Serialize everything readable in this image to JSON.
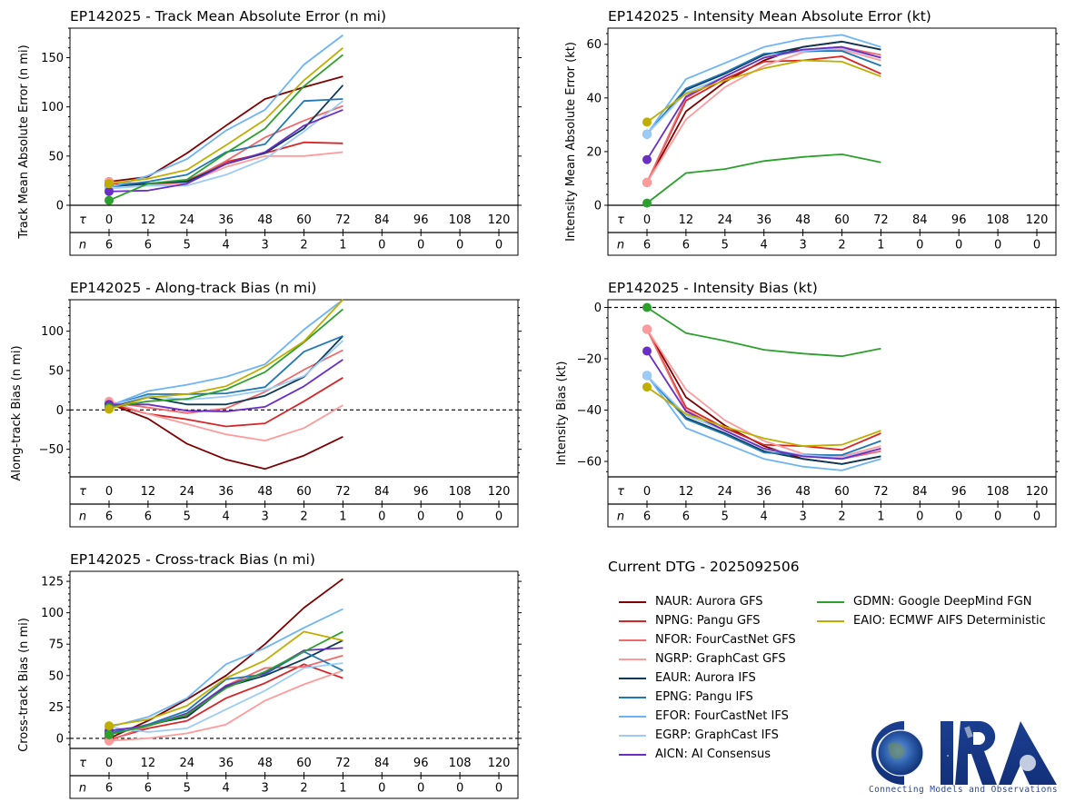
{
  "legend": {
    "title": "Current DTG - 2025092506",
    "items": [
      {
        "code": "NAUR",
        "label": "NAUR: Aurora GFS",
        "color": "#7f0000"
      },
      {
        "code": "NPNG",
        "label": "NPNG: Pangu GFS",
        "color": "#d62728"
      },
      {
        "code": "NFOR",
        "label": "NFOR: FourCastNet GFS",
        "color": "#f06a6a"
      },
      {
        "code": "NGRP",
        "label": "NGRP: GraphCast GFS",
        "color": "#ff9b9b"
      },
      {
        "code": "EAUR",
        "label": "EAUR: Aurora IFS",
        "color": "#0b3a57"
      },
      {
        "code": "EPNG",
        "label": "EPNG: Pangu IFS",
        "color": "#1f77b4"
      },
      {
        "code": "EFOR",
        "label": "EFOR: FourCastNet IFS",
        "color": "#6cb4f5"
      },
      {
        "code": "EGRP",
        "label": "EGRP: GraphCast IFS",
        "color": "#9ccbf9"
      },
      {
        "code": "AICN",
        "label": "AICN: AI Consensus",
        "color": "#6a2ec4"
      },
      {
        "code": "GDMN",
        "label": "GDMN: Google DeepMind FGN",
        "color": "#2ca02c"
      },
      {
        "code": "EAIO",
        "label": "EAIO: ECMWF AIFS Deterministic",
        "color": "#bfae00"
      }
    ]
  },
  "logo": {
    "text": "CIRA",
    "tagline": "Connecting Models and Observations"
  },
  "chart_data": [
    {
      "id": "track-mae",
      "type": "line",
      "title": "EP142025 - Track Mean Absolute Error (n mi)",
      "ylabel": "Track Mean Absolute Error (n mi)",
      "ylim": [
        0,
        180
      ],
      "yticks": [
        0,
        50,
        100,
        150
      ],
      "zero_line": "solid",
      "tau_label": "τ",
      "n_label": "n",
      "x": [
        0,
        12,
        24,
        36,
        48,
        60,
        72,
        84,
        96,
        108,
        120
      ],
      "n": [
        6,
        6,
        5,
        4,
        3,
        2,
        1,
        0,
        0,
        0,
        0
      ],
      "series": [
        {
          "code": "NAUR",
          "values": [
            24,
            29,
            53,
            81,
            108,
            120,
            131
          ]
        },
        {
          "code": "NPNG",
          "values": [
            22,
            22,
            25,
            44,
            53,
            64,
            63
          ]
        },
        {
          "code": "NFOR",
          "values": [
            23,
            22,
            24,
            45,
            69,
            86,
            101
          ]
        },
        {
          "code": "NGRP",
          "values": [
            24,
            20,
            23,
            39,
            50,
            50,
            54
          ]
        },
        {
          "code": "EAUR",
          "values": [
            19,
            22,
            24,
            42,
            53,
            78,
            122
          ]
        },
        {
          "code": "EPNG",
          "values": [
            19,
            24,
            31,
            54,
            62,
            106,
            108
          ]
        },
        {
          "code": "EFOR",
          "values": [
            18,
            30,
            47,
            76,
            97,
            143,
            173
          ]
        },
        {
          "code": "EGRP",
          "values": [
            17,
            20,
            20,
            31,
            47,
            75,
            106
          ]
        },
        {
          "code": "AICN",
          "values": [
            14,
            15,
            22,
            42,
            54,
            81,
            97
          ]
        },
        {
          "code": "GDMN",
          "values": [
            5,
            22,
            26,
            53,
            78,
            121,
            153
          ]
        },
        {
          "code": "EAIO",
          "values": [
            22,
            27,
            36,
            61,
            87,
            127,
            160
          ]
        }
      ]
    },
    {
      "id": "intensity-mae",
      "type": "line",
      "title": "EP142025 - Intensity Mean Absolute Error (kt)",
      "ylabel": "Intensity Mean Absolute Error (kt)",
      "ylim": [
        0,
        66
      ],
      "yticks": [
        0,
        20,
        40,
        60
      ],
      "zero_line": "solid",
      "tau_label": "τ",
      "n_label": "n",
      "x": [
        0,
        12,
        24,
        36,
        48,
        60,
        72,
        84,
        96,
        108,
        120
      ],
      "n": [
        6,
        6,
        5,
        4,
        3,
        2,
        1,
        0,
        0,
        0,
        0
      ],
      "series": [
        {
          "code": "NAUR",
          "values": [
            8.5,
            35,
            46,
            54,
            59,
            61,
            58
          ]
        },
        {
          "code": "NPNG",
          "values": [
            8.5,
            39,
            47,
            53.5,
            54,
            55.5,
            49
          ]
        },
        {
          "code": "NFOR",
          "values": [
            8.5,
            40,
            48,
            55,
            58,
            59,
            56
          ]
        },
        {
          "code": "NGRP",
          "values": [
            8.5,
            32,
            44,
            52,
            57,
            58,
            54
          ]
        },
        {
          "code": "EAUR",
          "values": [
            26.5,
            43,
            49,
            56,
            59,
            61,
            58
          ]
        },
        {
          "code": "EPNG",
          "values": [
            26.5,
            43.5,
            49.5,
            56.5,
            57.5,
            57.5,
            52
          ]
        },
        {
          "code": "EFOR",
          "values": [
            26.5,
            47,
            53,
            59,
            62,
            63.5,
            59
          ]
        },
        {
          "code": "EGRP",
          "values": [
            26.5,
            42,
            48,
            55,
            57.5,
            58.5,
            55
          ]
        },
        {
          "code": "AICN",
          "values": [
            17,
            40.5,
            48,
            55,
            58,
            59,
            55
          ]
        },
        {
          "code": "GDMN",
          "values": [
            0.8,
            12,
            13.5,
            16.5,
            18,
            19,
            16
          ]
        },
        {
          "code": "EAIO",
          "values": [
            31,
            41.5,
            46.5,
            51,
            54,
            53.5,
            48
          ]
        }
      ]
    },
    {
      "id": "along-track-bias",
      "type": "line",
      "title": "EP142025 - Along-track Bias (n mi)",
      "ylabel": "Along-track Bias (n mi)",
      "ylim": [
        -85,
        140
      ],
      "yticks": [
        -50,
        0,
        50,
        100
      ],
      "zero_line": "dashed",
      "tau_label": "τ",
      "n_label": "n",
      "x": [
        0,
        12,
        24,
        36,
        48,
        60,
        72,
        84,
        96,
        108,
        120
      ],
      "n": [
        6,
        6,
        5,
        4,
        3,
        2,
        1,
        0,
        0,
        0,
        0
      ],
      "series": [
        {
          "code": "NAUR",
          "values": [
            8,
            -11,
            -43,
            -63,
            -75,
            -58,
            -34
          ]
        },
        {
          "code": "NPNG",
          "values": [
            8,
            -5,
            -12,
            -21,
            -17,
            11,
            41
          ]
        },
        {
          "code": "NFOR",
          "values": [
            10,
            3,
            -4,
            2,
            23,
            51,
            76
          ]
        },
        {
          "code": "NGRP",
          "values": [
            11,
            -5,
            -18,
            -31,
            -39,
            -23,
            6
          ]
        },
        {
          "code": "EAUR",
          "values": [
            5,
            16,
            7,
            7,
            18,
            42,
            94
          ]
        },
        {
          "code": "EPNG",
          "values": [
            5,
            20,
            20,
            21,
            29,
            74,
            94
          ]
        },
        {
          "code": "EFOR",
          "values": [
            5,
            24,
            32,
            42,
            58,
            102,
            140
          ]
        },
        {
          "code": "EGRP",
          "values": [
            5,
            18,
            13,
            17,
            25,
            43,
            88
          ]
        },
        {
          "code": "AICN",
          "values": [
            7,
            7,
            -1,
            -2,
            4,
            30,
            64
          ]
        },
        {
          "code": "GDMN",
          "values": [
            3,
            11,
            14,
            26,
            48,
            86,
            128
          ]
        },
        {
          "code": "EAIO",
          "values": [
            1,
            16,
            20,
            30,
            55,
            87,
            140
          ]
        }
      ]
    },
    {
      "id": "intensity-bias",
      "type": "line",
      "title": "EP142025 - Intensity Bias (kt)",
      "ylabel": "Intensity Bias (kt)",
      "ylim": [
        -66,
        3
      ],
      "yticks": [
        -60,
        -40,
        -20,
        0
      ],
      "zero_line": "dashed",
      "tau_label": "τ",
      "n_label": "n",
      "x": [
        0,
        12,
        24,
        36,
        48,
        60,
        72,
        84,
        96,
        108,
        120
      ],
      "n": [
        6,
        6,
        5,
        4,
        3,
        2,
        1,
        0,
        0,
        0,
        0
      ],
      "series": [
        {
          "code": "NAUR",
          "values": [
            -8.5,
            -35,
            -46,
            -54,
            -59,
            -61,
            -58
          ]
        },
        {
          "code": "NPNG",
          "values": [
            -8.5,
            -39,
            -47,
            -53.5,
            -54,
            -55.5,
            -49
          ]
        },
        {
          "code": "NFOR",
          "values": [
            -8.5,
            -40,
            -48,
            -55,
            -58,
            -59,
            -56
          ]
        },
        {
          "code": "NGRP",
          "values": [
            -8.5,
            -32,
            -44,
            -52,
            -57,
            -58,
            -54
          ]
        },
        {
          "code": "EAUR",
          "values": [
            -26.5,
            -43,
            -49,
            -56,
            -59,
            -61,
            -58
          ]
        },
        {
          "code": "EPNG",
          "values": [
            -26.5,
            -43.5,
            -49.5,
            -56.5,
            -57.5,
            -57.5,
            -52
          ]
        },
        {
          "code": "EFOR",
          "values": [
            -26.5,
            -47,
            -53,
            -59,
            -62,
            -63.5,
            -59
          ]
        },
        {
          "code": "EGRP",
          "values": [
            -26.5,
            -42,
            -48,
            -55,
            -57.5,
            -58.5,
            -55
          ]
        },
        {
          "code": "AICN",
          "values": [
            -17,
            -40.5,
            -48,
            -55,
            -58,
            -59,
            -55
          ]
        },
        {
          "code": "GDMN",
          "values": [
            0,
            -10,
            -13,
            -16.5,
            -18,
            -19,
            -16
          ]
        },
        {
          "code": "EAIO",
          "values": [
            -31,
            -41.5,
            -46.5,
            -51,
            -54,
            -53.5,
            -48
          ]
        }
      ]
    },
    {
      "id": "cross-track-bias",
      "type": "line",
      "title": "EP142025 - Cross-track Bias (n mi)",
      "ylabel": "Cross-track Bias (n mi)",
      "ylim": [
        -8,
        133
      ],
      "yticks": [
        0,
        25,
        50,
        75,
        100,
        125
      ],
      "zero_line": "dashed",
      "tau_label": "τ",
      "n_label": "n",
      "x": [
        0,
        12,
        24,
        36,
        48,
        60,
        72,
        84,
        96,
        108,
        120
      ],
      "n": [
        6,
        6,
        5,
        4,
        3,
        2,
        1,
        0,
        0,
        0,
        0
      ],
      "series": [
        {
          "code": "NAUR",
          "values": [
            0,
            14,
            31,
            50,
            75,
            104,
            127
          ]
        },
        {
          "code": "NPNG",
          "values": [
            -1,
            8,
            14,
            32,
            44,
            59,
            48
          ]
        },
        {
          "code": "NFOR",
          "values": [
            -2,
            10,
            18,
            42,
            56,
            57,
            66
          ]
        },
        {
          "code": "NGRP",
          "values": [
            -2,
            0,
            4,
            11,
            30,
            43,
            54
          ]
        },
        {
          "code": "EAUR",
          "values": [
            3,
            11,
            17,
            41,
            50,
            63,
            78
          ]
        },
        {
          "code": "EPNG",
          "values": [
            4,
            11,
            22,
            47,
            51,
            69,
            54
          ]
        },
        {
          "code": "EFOR",
          "values": [
            9,
            17,
            32,
            59,
            72,
            88,
            103
          ]
        },
        {
          "code": "EGRP",
          "values": [
            9,
            5,
            8,
            23,
            38,
            56,
            60
          ]
        },
        {
          "code": "AICN",
          "values": [
            6,
            10,
            20,
            42,
            52,
            70,
            72
          ]
        },
        {
          "code": "GDMN",
          "values": [
            3,
            10,
            19,
            40,
            53,
            69,
            85
          ]
        },
        {
          "code": "EAIO",
          "values": [
            10,
            15,
            26,
            48,
            62,
            85,
            78
          ]
        }
      ]
    }
  ]
}
